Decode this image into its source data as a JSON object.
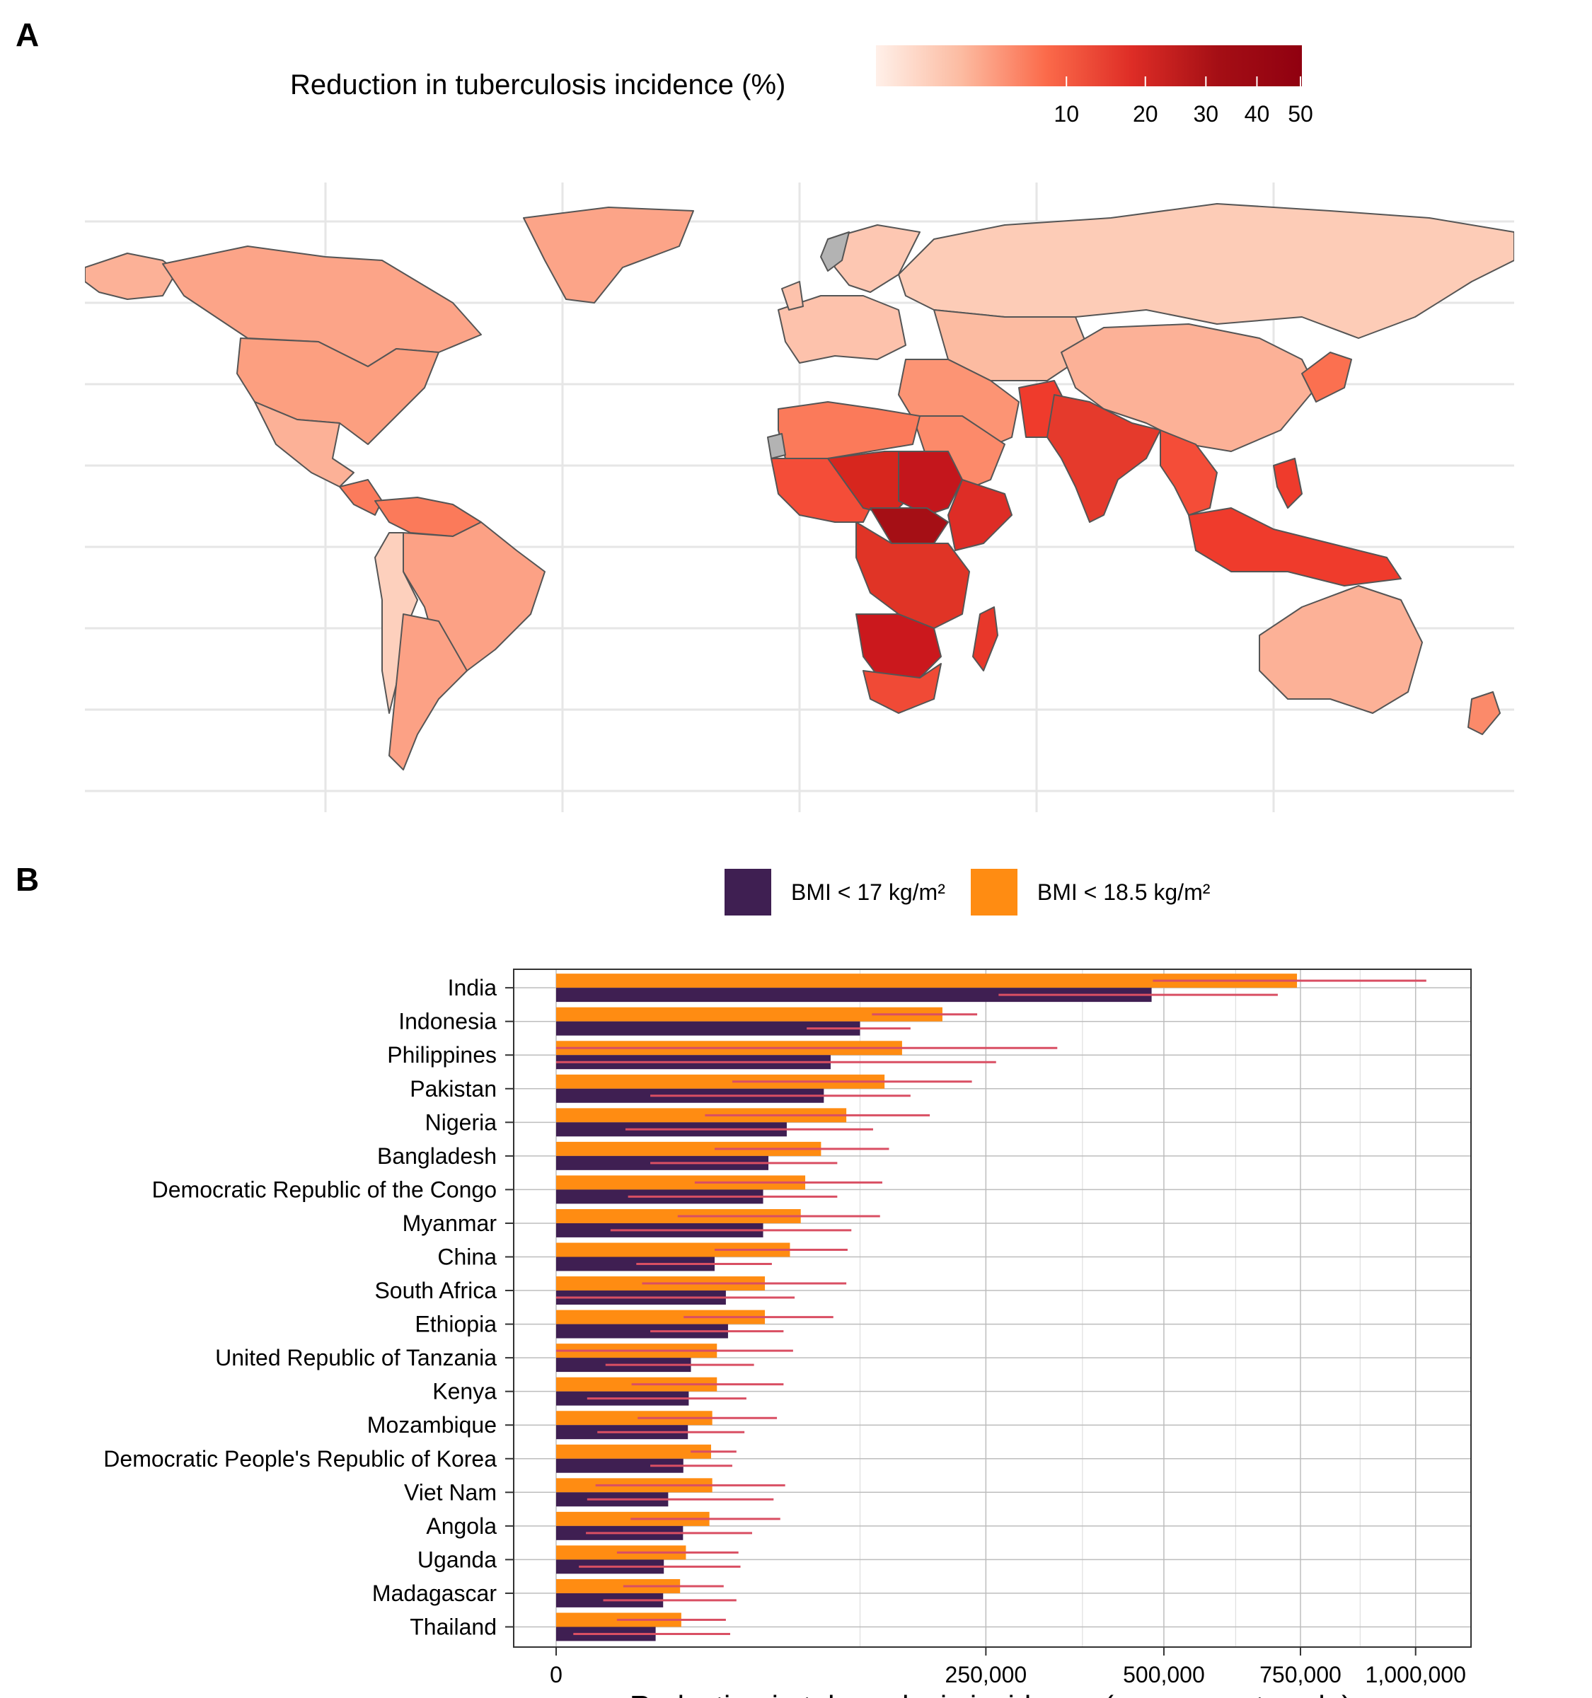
{
  "panels": {
    "a": "A",
    "b": "B"
  },
  "map": {
    "legend_title": "Reduction in tuberculosis incidence (%)",
    "legend_ticks": [
      10,
      20,
      30,
      40,
      50
    ],
    "legend_range": [
      0,
      50
    ],
    "scale_colors": [
      "#fff0e9",
      "#fcbba1",
      "#fb6a4a",
      "#de2d26",
      "#a50f15",
      "#900010"
    ],
    "missing_color": "#b3b3b3",
    "border_color": "#555555"
  },
  "chart_data": {
    "type": "bar",
    "orientation": "horizontal",
    "x_scale": "sqrt",
    "xlabel": "Reduction in tuberculosis incidence (square root scale)",
    "ylabel": "",
    "xlim": [
      0,
      1100000
    ],
    "xticks": [
      0,
      250000,
      500000,
      750000,
      1000000
    ],
    "xtick_labels": [
      "0",
      "250,000",
      "500,000",
      "750,000",
      "1,000,000"
    ],
    "categories": [
      "India",
      "Indonesia",
      "Philippines",
      "Pakistan",
      "Nigeria",
      "Bangladesh",
      "Democratic Republic of the Congo",
      "Myanmar",
      "China",
      "South Africa",
      "Ethiopia",
      "United Republic of Tanzania",
      "Kenya",
      "Mozambique",
      "Democratic People's Republic of Korea",
      "Viet Nam",
      "Angola",
      "Uganda",
      "Madagascar",
      "Thailand"
    ],
    "series": [
      {
        "name": "BMI < 17 kg/m²",
        "color": "#3f1f52",
        "values": [
          480000,
          125000,
          102000,
          97000,
          72000,
          61000,
          58000,
          58000,
          34000,
          39000,
          40000,
          24600,
          23800,
          23500,
          21900,
          17000,
          21800,
          15700,
          15500,
          13400
        ],
        "lower": [
          265000,
          85000,
          0,
          12000,
          6500,
          12000,
          7000,
          4000,
          8700,
          0,
          12000,
          3300,
          1300,
          2300,
          12000,
          1300,
          1200,
          700,
          3000,
          400
        ],
        "upper": [
          705000,
          170000,
          262000,
          170000,
          136000,
          107000,
          107000,
          118000,
          63000,
          77000,
          70000,
          53000,
          49000,
          48000,
          42000,
          64000,
          52000,
          46000,
          44000,
          41000
        ]
      },
      {
        "name": "BMI < 18.5 kg/m²",
        "color": "#ff8c12",
        "values": [
          743000,
          202000,
          162000,
          146000,
          114000,
          95000,
          84000,
          81000,
          74000,
          59000,
          59000,
          35000,
          35000,
          33000,
          32500,
          33000,
          31800,
          22800,
          20800,
          21200
        ],
        "lower": [
          482000,
          135000,
          0,
          42000,
          30000,
          34000,
          26000,
          20000,
          34000,
          10000,
          22000,
          0,
          7700,
          9000,
          24500,
          2100,
          7500,
          5000,
          6100,
          5000
        ],
        "upper": [
          1025000,
          240000,
          340000,
          234000,
          189000,
          150000,
          144000,
          142000,
          115000,
          114000,
          104000,
          76000,
          70000,
          66000,
          44000,
          71000,
          68000,
          45000,
          38000,
          39000
        ]
      }
    ],
    "error_bar_color": "#d94f63",
    "grid": true
  }
}
